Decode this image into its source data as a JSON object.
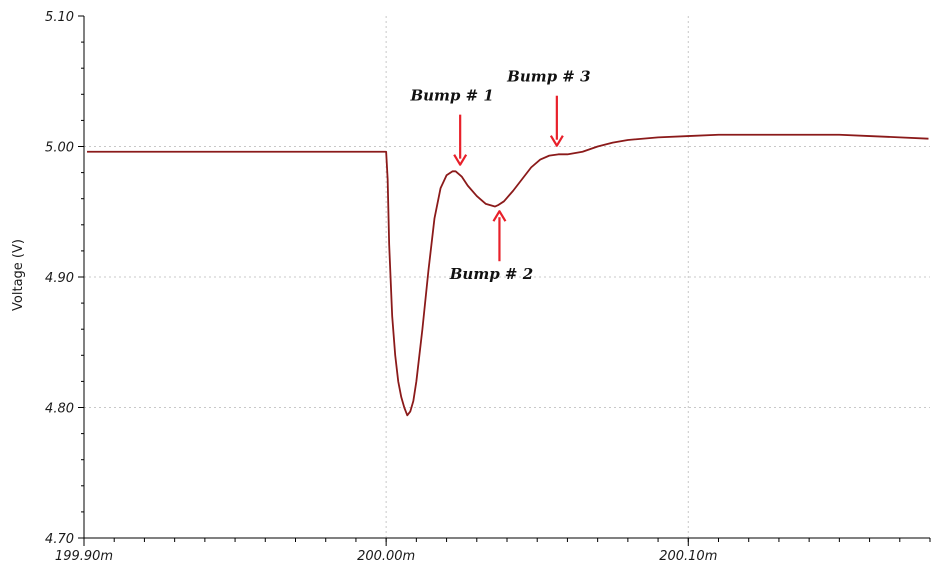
{
  "chart_data": {
    "type": "line",
    "title": "",
    "xlabel": "",
    "ylabel": "Voltage (V)",
    "xlim": [
      199.9,
      200.18
    ],
    "ylim": [
      4.7,
      5.1
    ],
    "grid": true,
    "x_ticks": [
      {
        "value": 199.9,
        "label": "199.90m"
      },
      {
        "value": 200.0,
        "label": "200.00m"
      },
      {
        "value": 200.1,
        "label": "200.10m"
      }
    ],
    "y_ticks": [
      {
        "value": 4.7,
        "label": "4.70"
      },
      {
        "value": 4.8,
        "label": "4.80"
      },
      {
        "value": 4.9,
        "label": "4.90"
      },
      {
        "value": 5.0,
        "label": "5.00"
      },
      {
        "value": 5.1,
        "label": "5.10"
      }
    ],
    "series": [
      {
        "name": "",
        "color": "#8b1a1a",
        "x": [
          199.901,
          199.95,
          199.999,
          200.0,
          200.0005,
          200.001,
          200.002,
          200.003,
          200.004,
          200.005,
          200.006,
          200.0065,
          200.007,
          200.008,
          200.009,
          200.01,
          200.012,
          200.014,
          200.016,
          200.018,
          200.02,
          200.022,
          200.023,
          200.024,
          200.025,
          200.027,
          200.03,
          200.033,
          200.036,
          200.037,
          200.039,
          200.042,
          200.045,
          200.048,
          200.051,
          200.054,
          200.057,
          200.06,
          200.065,
          200.07,
          200.075,
          200.08,
          200.09,
          200.1,
          200.11,
          200.12,
          200.13,
          200.14,
          200.15,
          200.16,
          200.17,
          200.1795
        ],
        "y": [
          4.996,
          4.996,
          4.996,
          4.996,
          4.975,
          4.925,
          4.87,
          4.84,
          4.82,
          4.808,
          4.8,
          4.797,
          4.794,
          4.797,
          4.805,
          4.82,
          4.86,
          4.905,
          4.945,
          4.968,
          4.978,
          4.981,
          4.981,
          4.979,
          4.977,
          4.97,
          4.962,
          4.956,
          4.954,
          4.955,
          4.958,
          4.966,
          4.975,
          4.984,
          4.99,
          4.993,
          4.994,
          4.994,
          4.996,
          5.0,
          5.003,
          5.005,
          5.007,
          5.008,
          5.009,
          5.009,
          5.009,
          5.009,
          5.009,
          5.008,
          5.007,
          5.006
        ]
      }
    ],
    "annotations": [
      {
        "text": "Bump # 1",
        "x": 200.0245,
        "y": 4.9815,
        "arrow_from": "above"
      },
      {
        "text": "Bump # 2",
        "x": 200.0375,
        "y": 4.955,
        "arrow_from": "below"
      },
      {
        "text": "Bump # 3",
        "x": 200.0565,
        "y": 4.996,
        "arrow_from": "above"
      }
    ],
    "annotation_color": "#e8202a"
  }
}
